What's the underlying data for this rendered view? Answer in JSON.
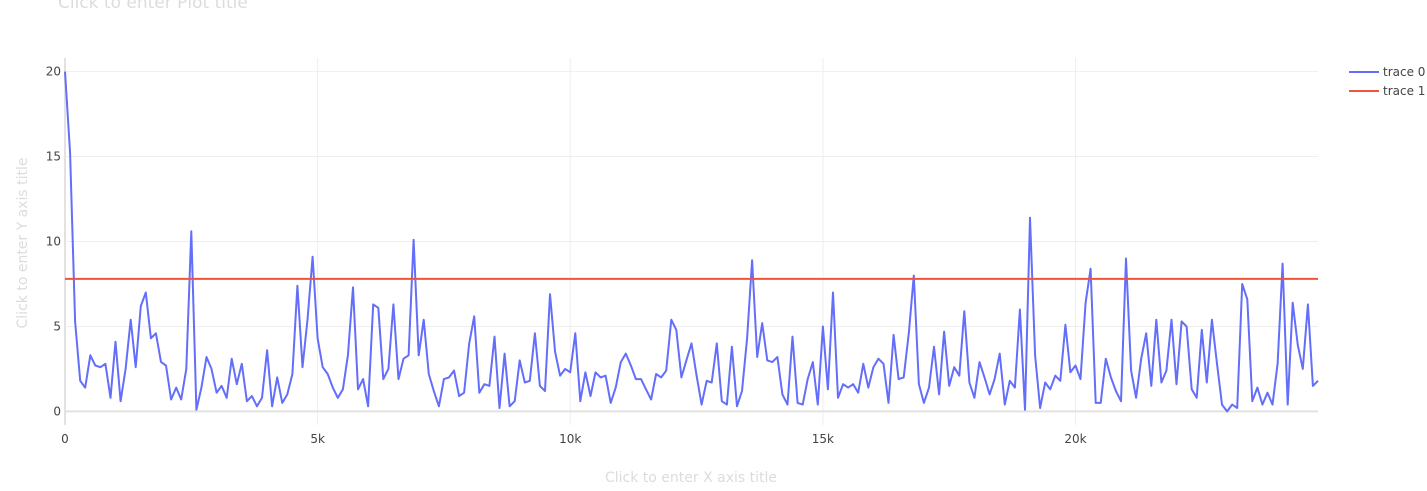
{
  "chart": {
    "title_placeholder": "Click to enter Plot title",
    "xaxis_placeholder": "Click to enter X axis title",
    "yaxis_placeholder": "Click to enter Y axis title"
  },
  "chart_data": {
    "type": "line",
    "title": "",
    "xlabel": "",
    "ylabel": "",
    "xlim": [
      0,
      24800
    ],
    "ylim": [
      -0.8,
      20.8
    ],
    "x_ticks": [
      0,
      5000,
      10000,
      15000,
      20000
    ],
    "x_tick_labels": [
      "0",
      "5k",
      "10k",
      "15k",
      "20k"
    ],
    "y_ticks": [
      0,
      5,
      10,
      15,
      20
    ],
    "y_tick_labels": [
      "0",
      "5",
      "10",
      "15",
      "20"
    ],
    "grid": true,
    "legend": "top-right",
    "series": [
      {
        "name": "trace 0",
        "color": "#636efa",
        "x": [
          0,
          100,
          200,
          300,
          400,
          500,
          600,
          700,
          800,
          900,
          1000,
          1100,
          1200,
          1300,
          1400,
          1500,
          1600,
          1700,
          1800,
          1900,
          2000,
          2100,
          2200,
          2300,
          2400,
          2500,
          2600,
          2700,
          2800,
          2900,
          3000,
          3100,
          3200,
          3300,
          3400,
          3500,
          3600,
          3700,
          3800,
          3900,
          4000,
          4100,
          4200,
          4300,
          4400,
          4500,
          4600,
          4700,
          4800,
          4900,
          5000,
          5100,
          5200,
          5300,
          5400,
          5500,
          5600,
          5700,
          5800,
          5900,
          6000,
          6100,
          6200,
          6300,
          6400,
          6500,
          6600,
          6700,
          6800,
          6900,
          7000,
          7100,
          7200,
          7300,
          7400,
          7500,
          7600,
          7700,
          7800,
          7900,
          8000,
          8100,
          8200,
          8300,
          8400,
          8500,
          8600,
          8700,
          8800,
          8900,
          9000,
          9100,
          9200,
          9300,
          9400,
          9500,
          9600,
          9700,
          9800,
          9900,
          10000,
          10100,
          10200,
          10300,
          10400,
          10500,
          10600,
          10700,
          10800,
          10900,
          11000,
          11100,
          11200,
          11300,
          11400,
          11500,
          11600,
          11700,
          11800,
          11900,
          12000,
          12100,
          12200,
          12300,
          12400,
          12500,
          12600,
          12700,
          12800,
          12900,
          13000,
          13100,
          13200,
          13300,
          13400,
          13500,
          13600,
          13700,
          13800,
          13900,
          14000,
          14100,
          14200,
          14300,
          14400,
          14500,
          14600,
          14700,
          14800,
          14900,
          15000,
          15100,
          15200,
          15300,
          15400,
          15500,
          15600,
          15700,
          15800,
          15900,
          16000,
          16100,
          16200,
          16300,
          16400,
          16500,
          16600,
          16700,
          16800,
          16900,
          17000,
          17100,
          17200,
          17300,
          17400,
          17500,
          17600,
          17700,
          17800,
          17900,
          18000,
          18100,
          18200,
          18300,
          18400,
          18500,
          18600,
          18700,
          18800,
          18900,
          19000,
          19100,
          19200,
          19300,
          19400,
          19500,
          19600,
          19700,
          19800,
          19900,
          20000,
          20100,
          20200,
          20300,
          20400,
          20500,
          20600,
          20700,
          20800,
          20900,
          21000,
          21100,
          21200,
          21300,
          21400,
          21500,
          21600,
          21700,
          21800,
          21900,
          22000,
          22100,
          22200,
          22300,
          22400,
          22500,
          22600,
          22700,
          22800,
          22900,
          23000,
          23100,
          23200,
          23300,
          23400,
          23500,
          23600,
          23700,
          23800,
          23900,
          24000,
          24100,
          24200,
          24300,
          24400,
          24500,
          24600,
          24700,
          24800
        ],
        "y": [
          20,
          15.2,
          5.3,
          1.8,
          1.4,
          3.3,
          2.7,
          2.6,
          2.8,
          0.8,
          4.1,
          0.6,
          2.5,
          5.4,
          2.6,
          6.2,
          7.0,
          4.3,
          4.6,
          2.9,
          2.7,
          0.7,
          1.4,
          0.7,
          2.5,
          10.6,
          0.1,
          1.4,
          3.2,
          2.5,
          1.1,
          1.5,
          0.8,
          3.1,
          1.6,
          2.8,
          0.6,
          0.9,
          0.3,
          0.8,
          3.6,
          0.3,
          2.0,
          0.5,
          1.0,
          2.2,
          7.4,
          2.6,
          5.4,
          9.1,
          4.3,
          2.6,
          2.2,
          1.4,
          0.8,
          1.3,
          3.3,
          7.3,
          1.3,
          1.9,
          0.3,
          6.3,
          6.1,
          1.9,
          2.5,
          6.3,
          1.9,
          3.1,
          3.3,
          10.1,
          3.3,
          5.4,
          2.2,
          1.2,
          0.3,
          1.9,
          2.0,
          2.4,
          0.9,
          1.1,
          4.0,
          5.6,
          1.1,
          1.6,
          1.5,
          4.4,
          0.2,
          3.4,
          0.3,
          0.6,
          3.0,
          1.7,
          1.8,
          4.6,
          1.5,
          1.2,
          6.9,
          3.5,
          2.1,
          2.5,
          2.3,
          4.6,
          0.6,
          2.3,
          0.9,
          2.3,
          2.0,
          2.1,
          0.5,
          1.4,
          2.9,
          3.4,
          2.7,
          1.9,
          1.9,
          1.3,
          0.7,
          2.2,
          2.0,
          2.4,
          5.4,
          4.8,
          2.0,
          3.0,
          4.0,
          2.1,
          0.4,
          1.8,
          1.7,
          4.0,
          0.6,
          0.4,
          3.8,
          0.3,
          1.2,
          4.3,
          8.9,
          3.2,
          5.2,
          3.0,
          2.9,
          3.2,
          1.0,
          0.4,
          4.4,
          0.5,
          0.4,
          1.9,
          2.9,
          0.4,
          5.0,
          1.3,
          7.0,
          0.8,
          1.6,
          1.4,
          1.6,
          1.1,
          2.8,
          1.4,
          2.6,
          3.1,
          2.8,
          0.5,
          4.5,
          1.9,
          2.0,
          4.6,
          8.0,
          1.6,
          0.5,
          1.4,
          3.8,
          1.0,
          4.7,
          1.5,
          2.6,
          2.1,
          5.9,
          1.7,
          0.8,
          2.9,
          2.0,
          1.0,
          1.9,
          3.4,
          0.4,
          1.8,
          1.4,
          6.0,
          0.1,
          11.4,
          3.3,
          0.2,
          1.7,
          1.3,
          2.1,
          1.8,
          5.1,
          2.3,
          2.7,
          1.9,
          6.4,
          8.4,
          0.5,
          0.5,
          3.1,
          2.0,
          1.2,
          0.6,
          9.0,
          2.4,
          0.8,
          3.1,
          4.6,
          1.5,
          5.4,
          1.7,
          2.4,
          5.4,
          1.6,
          5.3,
          5.0,
          1.3,
          0.8,
          4.8,
          1.7,
          5.4,
          2.8,
          0.4,
          0.0,
          0.4,
          0.2,
          7.5,
          6.6,
          0.6,
          1.4,
          0.4,
          1.1,
          0.4,
          2.8,
          8.7,
          0.4,
          6.4,
          3.9,
          2.5,
          6.3,
          1.5,
          1.8
        ]
      },
      {
        "name": "trace 1",
        "color": "#ef553b",
        "x": [
          0,
          24800
        ],
        "y": [
          7.8,
          7.8
        ]
      }
    ]
  }
}
